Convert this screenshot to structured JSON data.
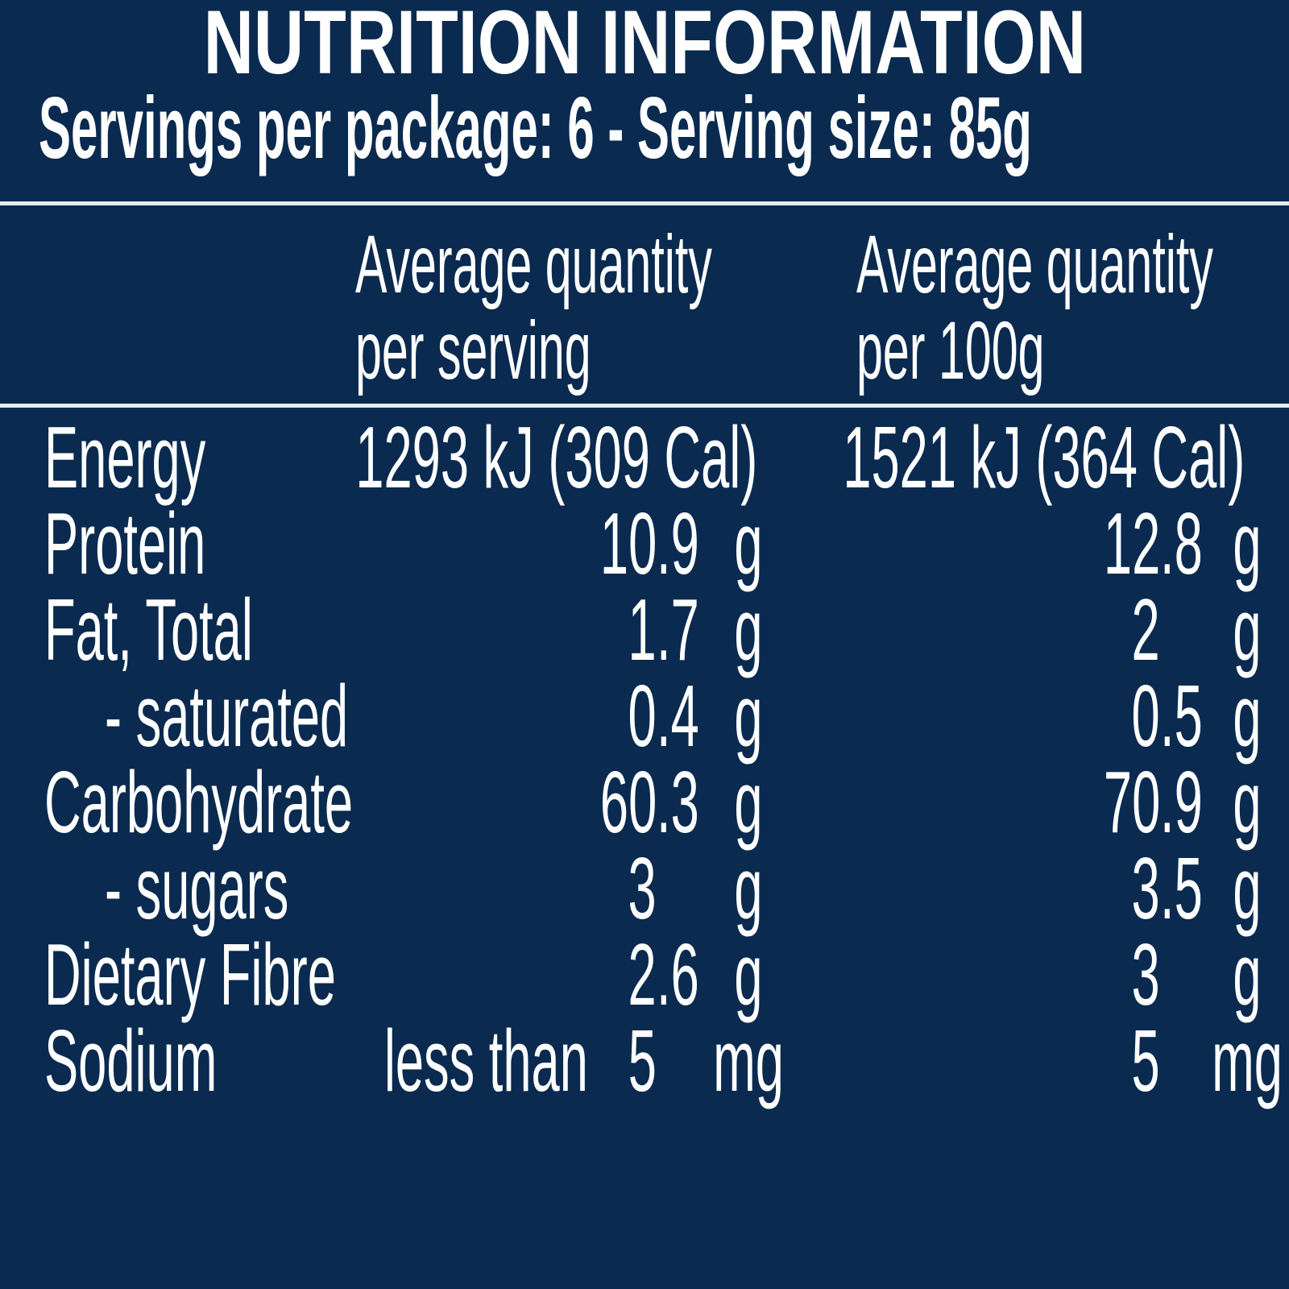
{
  "colors": {
    "background": "#0A2A50",
    "text": "#FFFFFF",
    "divider": "#E5ECF3"
  },
  "panel": {
    "title": "NUTRITION INFORMATION",
    "servings_line": "Servings per package: 6 - Serving size: 85g",
    "header": {
      "per_serving": [
        "Average quantity",
        "per serving"
      ],
      "per_100g": [
        "Average quantity",
        "per 100g"
      ]
    },
    "rows": [
      {
        "label": "Energy",
        "serving_text": "1293 kJ (309 Cal)",
        "per100_text": "1521 kJ (364 Cal)"
      },
      {
        "label": "Protein",
        "serving": {
          "int": "10",
          "dec": ".9",
          "unit": "g"
        },
        "per100": {
          "int": "12",
          "dec": ".8",
          "unit": "g"
        }
      },
      {
        "label": "Fat, Total",
        "serving": {
          "int": "1",
          "dec": ".7",
          "unit": "g"
        },
        "per100": {
          "int": "2",
          "dec": "",
          "unit": "g"
        }
      },
      {
        "label": "- saturated",
        "serving": {
          "int": "0",
          "dec": ".4",
          "unit": "g"
        },
        "per100": {
          "int": "0",
          "dec": ".5",
          "unit": "g"
        }
      },
      {
        "label": "Carbohydrate",
        "serving": {
          "int": "60",
          "dec": ".3",
          "unit": "g"
        },
        "per100": {
          "int": "70",
          "dec": ".9",
          "unit": "g"
        }
      },
      {
        "label": "- sugars",
        "serving": {
          "int": "3",
          "dec": "",
          "unit": "g"
        },
        "per100": {
          "int": "3",
          "dec": ".5",
          "unit": "g"
        }
      },
      {
        "label": "Dietary Fibre",
        "serving": {
          "int": "2",
          "dec": ".6",
          "unit": "g"
        },
        "per100": {
          "int": "3",
          "dec": "",
          "unit": "g"
        }
      },
      {
        "label": "Sodium",
        "serving": {
          "prefix": "less than",
          "int": "5",
          "dec": "",
          "unit": "mg"
        },
        "per100": {
          "int": "5",
          "dec": "",
          "unit": "mg"
        }
      }
    ]
  }
}
